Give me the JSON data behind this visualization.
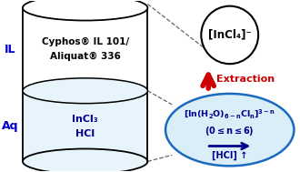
{
  "bg_color": "#ffffff",
  "cylinder_color_il": "#ffffff",
  "cylinder_color_aq": "#e8f4fc",
  "cylinder_border_color": "#000000",
  "il_label": "IL",
  "il_label_color": "#0000cc",
  "aq_label": "Aq",
  "aq_label_color": "#0000cc",
  "il_text1": "Cyphos® IL 101/",
  "il_text2": "Aliquat® 336",
  "il_text_color": "#000000",
  "aq_text1": "InCl₃",
  "aq_text2": "HCl",
  "aq_text_color": "#00008b",
  "circle_text": "[InCl₄]⁻",
  "circle_text_color": "#000000",
  "circle_border": "#000000",
  "circle_color": "#ffffff",
  "ellipse_color": "#daeef8",
  "ellipse_border": "#1a6abf",
  "ellipse_text_color": "#00008b",
  "arrow_color": "#cc0000",
  "extraction_text": "Extraction",
  "extraction_color": "#cc0000",
  "dashed_line_color": "#666666",
  "hcl_arrow_color": "#00008b"
}
